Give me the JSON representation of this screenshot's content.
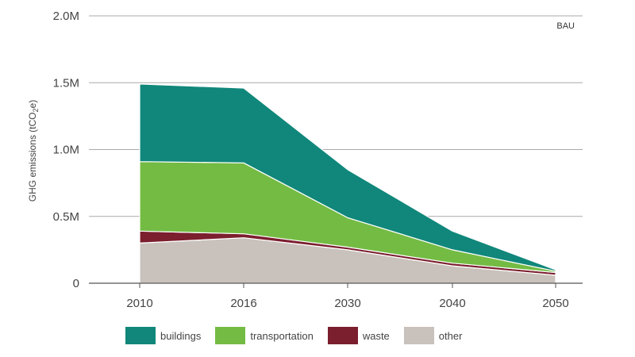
{
  "chart_data": {
    "type": "area",
    "stacked": true,
    "x": [
      "2010",
      "2016",
      "2030",
      "2040",
      "2050"
    ],
    "ylabel_main": "GHG emissions (tCO",
    "ylabel_sub": "2",
    "ylabel_end": "e)",
    "ylim": [
      0,
      2000000
    ],
    "yticks": [
      {
        "value": 0,
        "label": "0"
      },
      {
        "value": 500000,
        "label": "0.5M"
      },
      {
        "value": 1000000,
        "label": "1.0M"
      },
      {
        "value": 1500000,
        "label": "1.5M"
      },
      {
        "value": 2000000,
        "label": "2.0M"
      }
    ],
    "annotation": "BAU",
    "grid": true,
    "legend_position": "bottom",
    "series": [
      {
        "name": "other",
        "color": "#c9c1bb",
        "values": [
          300000,
          340000,
          250000,
          130000,
          60000
        ]
      },
      {
        "name": "waste",
        "color": "#7b1e2e",
        "values": [
          90000,
          30000,
          20000,
          20000,
          20000
        ]
      },
      {
        "name": "transportation",
        "color": "#74bb44",
        "values": [
          520000,
          530000,
          220000,
          100000,
          10000
        ]
      },
      {
        "name": "buildings",
        "color": "#10877a",
        "values": [
          580000,
          560000,
          360000,
          140000,
          10000
        ]
      }
    ],
    "legend_order": [
      "buildings",
      "transportation",
      "waste",
      "other"
    ]
  }
}
